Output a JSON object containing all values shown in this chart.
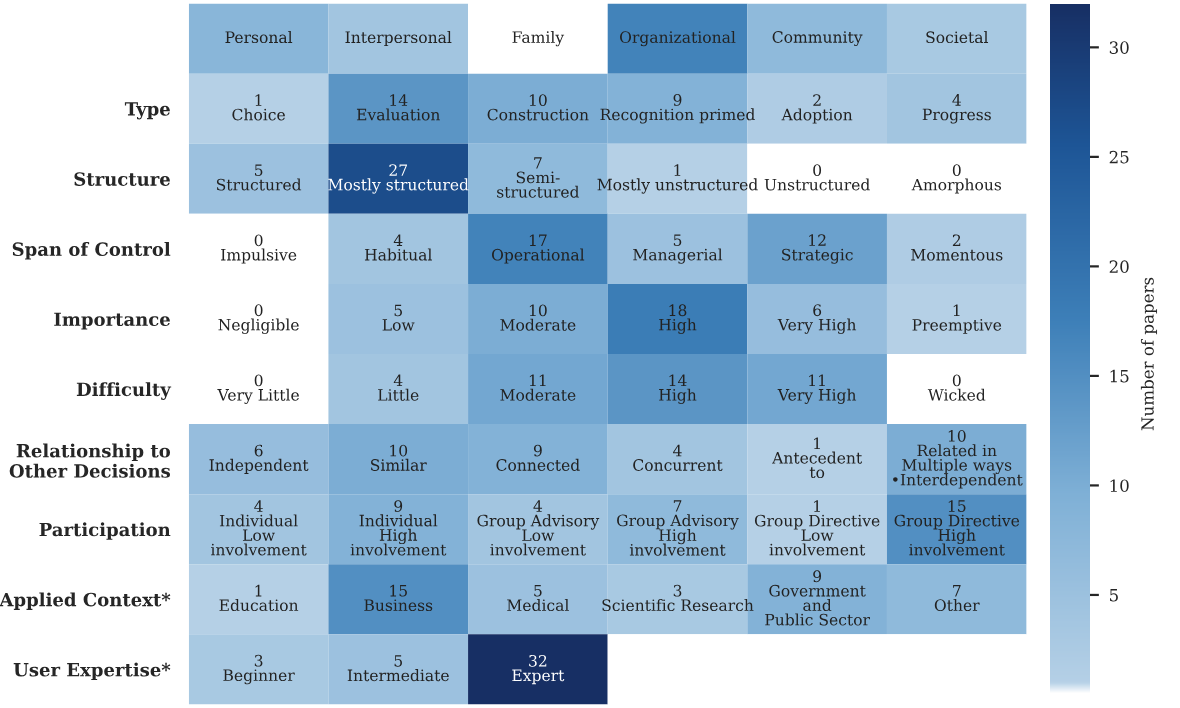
{
  "chart_data": {
    "type": "heatmap",
    "clabel": "Number of papers",
    "categories": [
      null,
      null,
      null,
      null,
      null,
      null
    ],
    "y_categories": [
      null,
      "Type",
      "Structure",
      "Span of Control",
      "Importance",
      "Difficulty",
      "Relationship to\nOther Decisions",
      "Participation",
      "Applied Context*",
      "User Expertise*"
    ],
    "cells": [
      [
        8,
        4,
        0,
        17,
        7,
        3
      ],
      [
        1,
        14,
        10,
        9,
        2,
        4
      ],
      [
        5,
        27,
        7,
        1,
        0,
        0
      ],
      [
        0,
        4,
        17,
        5,
        12,
        2
      ],
      [
        0,
        5,
        10,
        18,
        6,
        1
      ],
      [
        0,
        4,
        11,
        14,
        11,
        0
      ],
      [
        6,
        10,
        9,
        4,
        1,
        10
      ],
      [
        4,
        9,
        4,
        7,
        1,
        15
      ],
      [
        1,
        15,
        5,
        3,
        9,
        7
      ],
      [
        3,
        5,
        32,
        null,
        null,
        null
      ]
    ],
    "cell_labels": [
      [
        "Personal",
        "Interpersonal",
        "Family",
        "Organizational",
        "Community",
        "Societal"
      ],
      [
        "1\nChoice",
        "14\nEvaluation",
        "10\nConstruction",
        "9\nRecognition primed",
        "2\nAdoption",
        "4\nProgress"
      ],
      [
        "5\nStructured",
        "27\nMostly structured",
        "7\nSemi-\nstructured",
        "1\nMostly unstructured",
        "0\nUnstructured",
        "0\nAmorphous"
      ],
      [
        "0\nImpulsive",
        "4\nHabitual",
        "17\nOperational",
        "5\nManagerial",
        "12\nStrategic",
        "2\nMomentous"
      ],
      [
        "0\nNegligible",
        "5\nLow",
        "10\nModerate",
        "18\nHigh",
        "6\nVery High",
        "1\nPreemptive"
      ],
      [
        "0\nVery Little",
        "4\nLittle",
        "11\nModerate",
        "14\nHigh",
        "11\nVery High",
        "0\nWicked"
      ],
      [
        "6\nIndependent",
        "10\nSimilar",
        "9\nConnected",
        "4\nConcurrent",
        "1\nAntecedent\nto",
        "10\nRelated in\nMultiple ways\n•Interdependent"
      ],
      [
        "4\nIndividual\nLow\ninvolvement",
        "9\nIndividual\nHigh\ninvolvement",
        "4\nGroup Advisory\nLow\ninvolvement",
        "7\nGroup Advisory\nHigh\ninvolvement",
        "1\nGroup Directive\nLow\ninvolvement",
        "15\nGroup Directive\nHigh\ninvolvement"
      ],
      [
        "1\nEducation",
        "15\nBusiness",
        "5\nMedical",
        "3\nScientific Research",
        "9\nGovernment\nand\nPublic Sector",
        "7\nOther"
      ],
      [
        "3\nBeginner",
        "5\nIntermediate",
        "32\nExpert",
        null,
        null,
        null
      ]
    ],
    "clim": [
      0,
      32
    ],
    "cticks": [
      5,
      10,
      15,
      20,
      25,
      30
    ]
  }
}
